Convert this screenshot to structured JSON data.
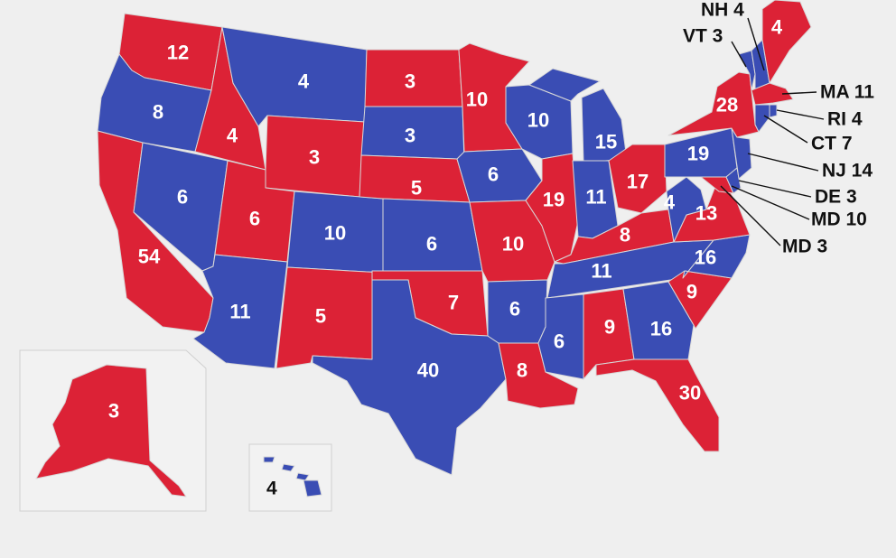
{
  "colors": {
    "red": "#dc2236",
    "blue": "#3a4db4",
    "background": "#efefef"
  },
  "states": [
    {
      "id": "WA",
      "votes": "12",
      "party": "red"
    },
    {
      "id": "OR",
      "votes": "8",
      "party": "blue"
    },
    {
      "id": "CA",
      "votes": "54",
      "party": "red"
    },
    {
      "id": "NV",
      "votes": "6",
      "party": "blue"
    },
    {
      "id": "ID",
      "votes": "4",
      "party": "red"
    },
    {
      "id": "MT",
      "votes": "4",
      "party": "blue"
    },
    {
      "id": "WY",
      "votes": "3",
      "party": "red"
    },
    {
      "id": "UT",
      "votes": "6",
      "party": "red"
    },
    {
      "id": "CO",
      "votes": "10",
      "party": "blue"
    },
    {
      "id": "AZ",
      "votes": "11",
      "party": "blue"
    },
    {
      "id": "NM",
      "votes": "5",
      "party": "red"
    },
    {
      "id": "ND",
      "votes": "3",
      "party": "red"
    },
    {
      "id": "SD",
      "votes": "3",
      "party": "blue"
    },
    {
      "id": "NE",
      "votes": "5",
      "party": "red"
    },
    {
      "id": "KS",
      "votes": "6",
      "party": "blue"
    },
    {
      "id": "OK",
      "votes": "7",
      "party": "red"
    },
    {
      "id": "TX",
      "votes": "40",
      "party": "blue"
    },
    {
      "id": "MN",
      "votes": "10",
      "party": "red"
    },
    {
      "id": "IA",
      "votes": "6",
      "party": "blue"
    },
    {
      "id": "MO",
      "votes": "10",
      "party": "red"
    },
    {
      "id": "AR",
      "votes": "6",
      "party": "blue"
    },
    {
      "id": "LA",
      "votes": "8",
      "party": "red"
    },
    {
      "id": "WI",
      "votes": "10",
      "party": "blue"
    },
    {
      "id": "IL",
      "votes": "19",
      "party": "red"
    },
    {
      "id": "MI",
      "votes": "15",
      "party": "blue"
    },
    {
      "id": "IN",
      "votes": "11",
      "party": "blue"
    },
    {
      "id": "OH",
      "votes": "17",
      "party": "red"
    },
    {
      "id": "KY",
      "votes": "8",
      "party": "red"
    },
    {
      "id": "TN",
      "votes": "11",
      "party": "blue"
    },
    {
      "id": "MS",
      "votes": "6",
      "party": "blue"
    },
    {
      "id": "AL",
      "votes": "9",
      "party": "red"
    },
    {
      "id": "GA",
      "votes": "16",
      "party": "blue"
    },
    {
      "id": "FL",
      "votes": "30",
      "party": "red"
    },
    {
      "id": "SC",
      "votes": "9",
      "party": "red"
    },
    {
      "id": "NC",
      "votes": "16",
      "party": "blue"
    },
    {
      "id": "VA",
      "votes": "13",
      "party": "red"
    },
    {
      "id": "WV",
      "votes": "4",
      "party": "blue"
    },
    {
      "id": "PA",
      "votes": "19",
      "party": "blue"
    },
    {
      "id": "NY",
      "votes": "28",
      "party": "red"
    },
    {
      "id": "ME",
      "votes": "4",
      "party": "red"
    },
    {
      "id": "AK",
      "votes": "3",
      "party": "red"
    },
    {
      "id": "HI",
      "votes": "4",
      "party": "blue"
    }
  ],
  "callouts": [
    {
      "id": "NH",
      "text": "NH 4",
      "party": "blue"
    },
    {
      "id": "VT",
      "text": "VT 3",
      "party": "blue"
    },
    {
      "id": "MA",
      "text": "MA 11",
      "party": "red"
    },
    {
      "id": "RI",
      "text": "RI 4",
      "party": "blue"
    },
    {
      "id": "CT",
      "text": "CT 7",
      "party": "blue"
    },
    {
      "id": "NJ",
      "text": "NJ 14",
      "party": "blue"
    },
    {
      "id": "DE",
      "text": "DE 3",
      "party": "blue"
    },
    {
      "id": "MD10",
      "text": "MD 10",
      "party": "red"
    },
    {
      "id": "MD3",
      "text": "MD 3",
      "party": "red"
    }
  ]
}
